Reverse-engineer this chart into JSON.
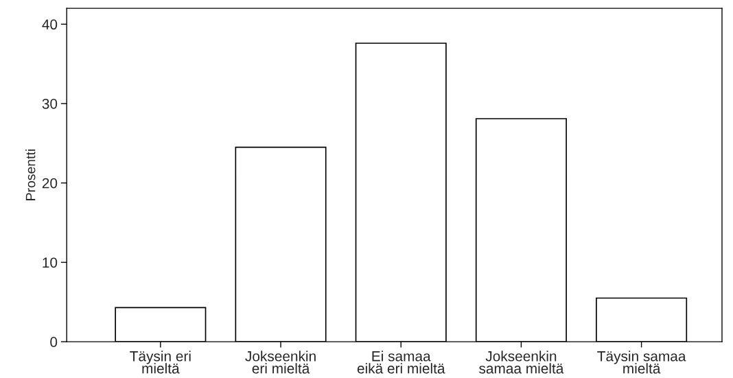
{
  "chart_data": {
    "type": "bar",
    "ylabel": "Prosentti",
    "categories": [
      "Täysin eri\nmieltä",
      "Jokseenkin\neri mieltä",
      "Ei samaa\neikä eri mieltä",
      "Jokseenkin\nsamaa mieltä",
      "Täysin samaa\nmieltä"
    ],
    "values": [
      4.3,
      24.5,
      37.6,
      28.1,
      5.5
    ],
    "color": "#ffffff",
    "ylim": [
      0,
      42
    ],
    "yticks": [
      0,
      10,
      20,
      30,
      40
    ],
    "grid": false
  }
}
